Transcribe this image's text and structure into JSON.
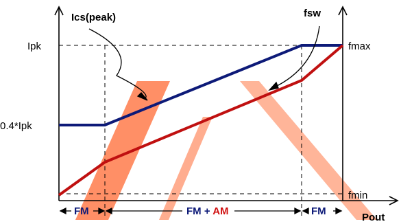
{
  "labels": {
    "current_curve": "Ics(peak)",
    "freq_curve": "fsw",
    "y_left_top": "Ipk",
    "y_left_mid": "0.4*Ipk",
    "y_right_top": "fmax",
    "y_right_bottom": "fmin",
    "x_axis": "Pout",
    "region_left": "FM",
    "region_mid_fm": "FM",
    "region_mid_plus": " + ",
    "region_mid_am": "AM",
    "region_right": "FM"
  },
  "colors": {
    "current_curve": "#0d1a78",
    "freq_curve": "#c01010",
    "am_text": "#d01010",
    "fm_text": "#0d1a78",
    "watermark": "#ff5a1e"
  },
  "chart_data": {
    "type": "line",
    "title": "",
    "xlabel": "Pout",
    "ylabel": "",
    "series": [
      {
        "name": "Ics(peak)",
        "points": [
          [
            0,
            0.4
          ],
          [
            0.22,
            0.4
          ],
          [
            0.855,
            1.0
          ],
          [
            1.0,
            1.0
          ]
        ]
      },
      {
        "name": "fsw",
        "points": [
          [
            0,
            0.0
          ],
          [
            0.22,
            0.21
          ],
          [
            0.855,
            0.73
          ],
          [
            1.0,
            1.0
          ]
        ]
      }
    ],
    "y_marks": [
      "0.4*Ipk",
      "Ipk"
    ],
    "regions": [
      "FM",
      "FM + AM",
      "FM"
    ]
  }
}
